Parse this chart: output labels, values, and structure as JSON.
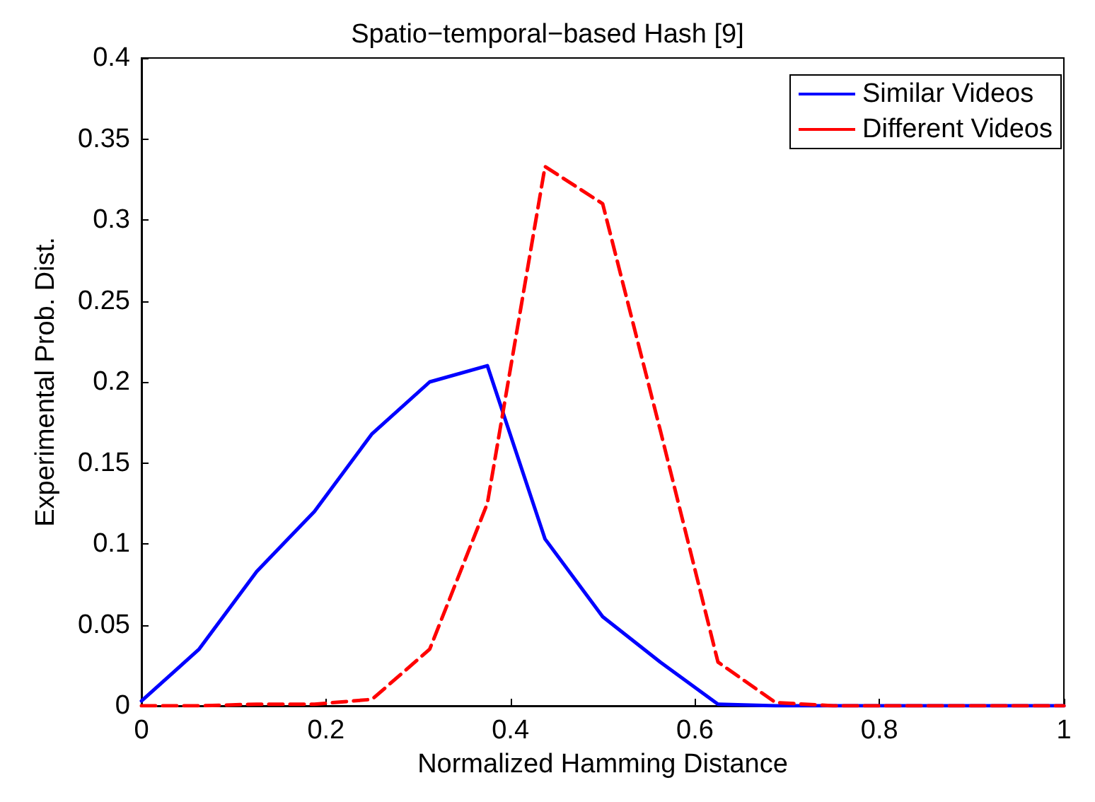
{
  "chart_data": {
    "type": "line",
    "title": "Spatio−temporal−based Hash [9]",
    "xlabel": "Normalized Hamming Distance",
    "ylabel": "Experimental Prob. Dist.",
    "x": [
      0,
      0.0625,
      0.125,
      0.1875,
      0.25,
      0.3125,
      0.375,
      0.4375,
      0.5,
      0.5625,
      0.625,
      0.6875,
      0.75,
      0.8125,
      0.875,
      0.9375,
      1
    ],
    "series": [
      {
        "name": "Similar Videos",
        "color": "#0000ff",
        "line_style": "solid",
        "values": [
          0.003,
          0.035,
          0.083,
          0.12,
          0.168,
          0.2,
          0.21,
          0.103,
          0.055,
          0.027,
          0.001,
          0,
          0,
          0,
          0,
          0,
          0
        ]
      },
      {
        "name": "Different Videos",
        "color": "#ff0000",
        "line_style": "dashed",
        "values": [
          0,
          0,
          0.001,
          0.001,
          0.004,
          0.035,
          0.125,
          0.333,
          0.31,
          0.17,
          0.027,
          0.002,
          0,
          0,
          0,
          0,
          0
        ]
      }
    ],
    "xlim": [
      0,
      1
    ],
    "xticks": [
      0,
      0.2,
      0.4,
      0.6,
      0.8,
      1
    ],
    "ylim": [
      0,
      0.4
    ],
    "yticks": [
      0,
      0.05,
      0.1,
      0.15,
      0.2,
      0.25,
      0.3,
      0.35,
      0.4
    ],
    "grid": false,
    "legend": "top right",
    "marker": "none"
  }
}
